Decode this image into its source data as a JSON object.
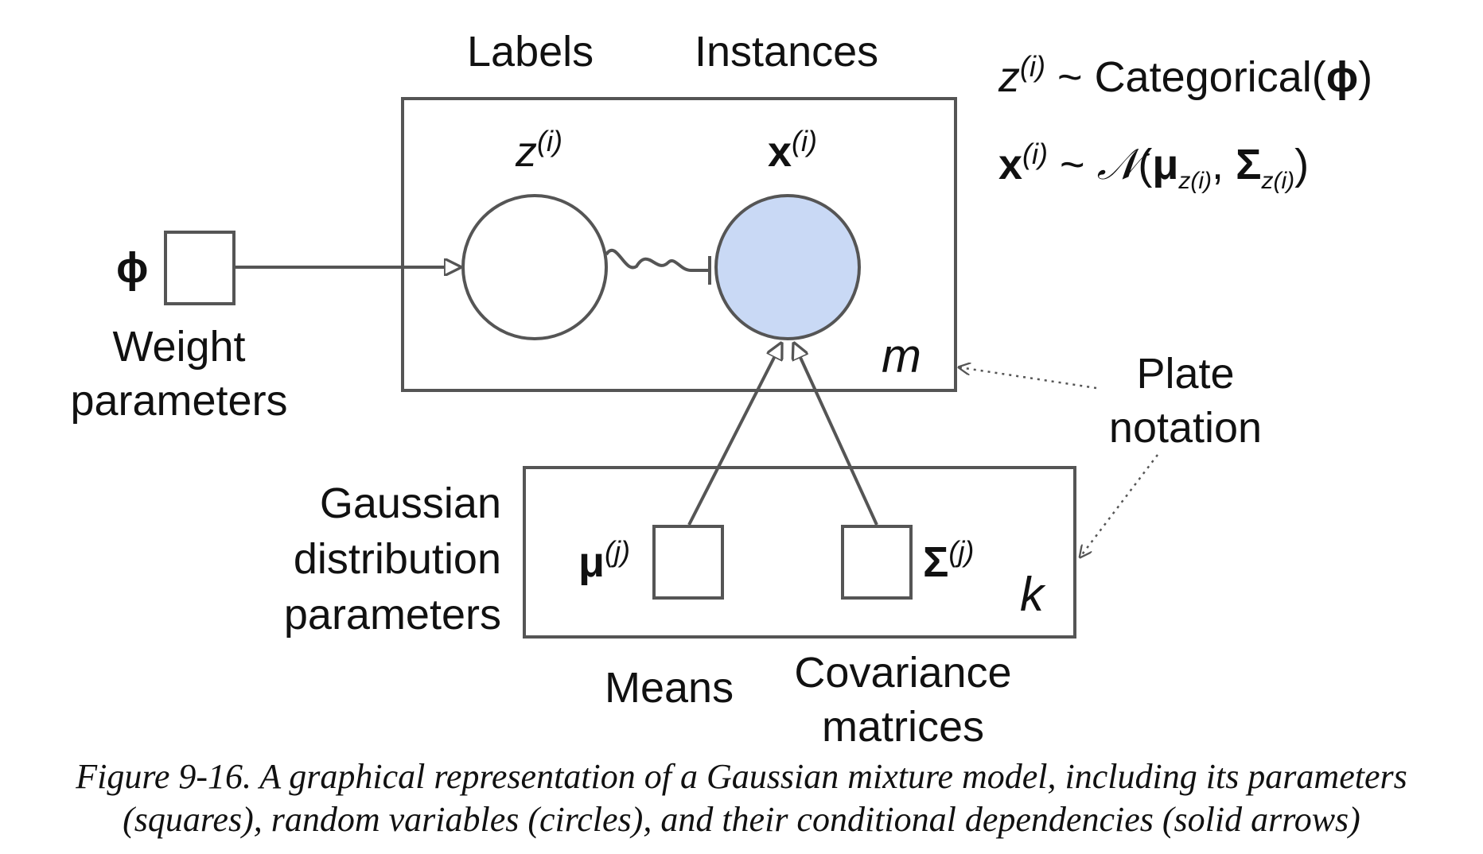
{
  "labels": {
    "labels_heading": "Labels",
    "instances_heading": "Instances",
    "z_node": {
      "base": "z",
      "sup": "(i)"
    },
    "x_node": {
      "base": "x",
      "sup": "(i)"
    },
    "phi_symbol": "ϕ",
    "weight_parameters": [
      "Weight",
      "parameters"
    ],
    "plate_m": "m",
    "plate_k": "k",
    "plate_notation": [
      "Plate",
      "notation"
    ],
    "gaussian_params": [
      "Gaussian",
      "distribution",
      "parameters"
    ],
    "mu_node": {
      "base": "μ",
      "sup": "(j)"
    },
    "sigma_node": {
      "base": "Σ",
      "sup": "(j)"
    },
    "means": "Means",
    "covariance": [
      "Covariance",
      "matrices"
    ]
  },
  "equations": {
    "eq1": {
      "lhs_base": "z",
      "lhs_sup": "(i)",
      "tilde": "~",
      "fn": "Categorical(",
      "arg": "ϕ",
      "close": ")"
    },
    "eq2": {
      "lhs_base": "x",
      "lhs_sup": "(i)",
      "tilde": "~",
      "dist": "𝒩",
      "open": "(",
      "mu": "μ",
      "mu_sub": "z(i)",
      "comma": ",",
      "sigma": "Σ",
      "sigma_sub": "z(i)",
      "close": ")"
    }
  },
  "caption": [
    "Figure 9-16. A graphical representation of a Gaussian mixture model, including its parameters",
    "(squares), random variables (circles), and their conditional dependencies (solid arrows)"
  ],
  "colors": {
    "stroke": "#555555",
    "observed_fill": "#c9d9f5",
    "text": "#111111"
  }
}
